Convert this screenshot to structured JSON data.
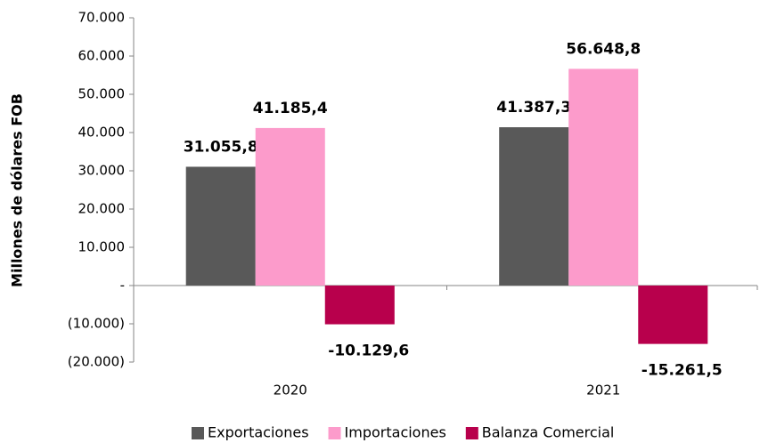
{
  "chart_data": {
    "type": "bar",
    "y_label": "Millones de dólares FOB",
    "categories": [
      "2020",
      "2021"
    ],
    "series": [
      {
        "name": "Exportaciones",
        "color": "#595959",
        "values": [
          31055.8,
          41387.3
        ],
        "value_labels": [
          "31.055,8",
          "41.387,3"
        ]
      },
      {
        "name": "Importaciones",
        "color": "#fc9bcb",
        "values": [
          41185.4,
          56648.8
        ],
        "value_labels": [
          "41.185,4",
          "56.648,8"
        ]
      },
      {
        "name": "Balanza Comercial",
        "color": "#b8004c",
        "values": [
          -10129.6,
          -15261.5
        ],
        "value_labels": [
          "-10.129,6",
          "-15.261,5"
        ]
      }
    ],
    "ylim": [
      -20000,
      70000
    ],
    "yticks": [
      {
        "value": -20000,
        "label": "(20.000)"
      },
      {
        "value": -10000,
        "label": "(10.000)"
      },
      {
        "value": 0,
        "label": "-"
      },
      {
        "value": 10000,
        "label": "10.000"
      },
      {
        "value": 20000,
        "label": "20.000"
      },
      {
        "value": 30000,
        "label": "30.000"
      },
      {
        "value": 40000,
        "label": "40.000"
      },
      {
        "value": 50000,
        "label": "50.000"
      },
      {
        "value": 60000,
        "label": "60.000"
      },
      {
        "value": 70000,
        "label": "70.000"
      }
    ],
    "legend": "bottom"
  }
}
